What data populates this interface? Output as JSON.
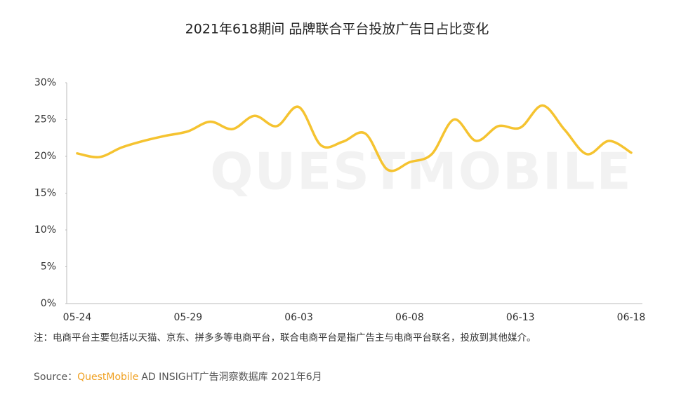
{
  "chart_data": {
    "type": "line",
    "title": "2021年618期间 品牌联合平台投放广告日占比变化",
    "watermark": "QUESTMOBILE",
    "categories": [
      "05-24",
      null,
      null,
      null,
      null,
      "05-29",
      null,
      null,
      null,
      null,
      "06-03",
      null,
      null,
      null,
      null,
      "06-08",
      null,
      null,
      null,
      null,
      "06-13",
      null,
      null,
      null,
      null,
      "06-18"
    ],
    "series": [
      {
        "name": "品牌联合平台投放广告日占比",
        "color": "#f5c330",
        "values": [
          20.4,
          19.9,
          21.2,
          22.1,
          22.8,
          23.4,
          24.7,
          23.7,
          25.5,
          24.1,
          26.7,
          21.5,
          22.0,
          23.1,
          18.2,
          19.2,
          20.3,
          25.0,
          22.1,
          24.1,
          23.9,
          26.9,
          23.6,
          20.3,
          22.1,
          20.5
        ]
      }
    ],
    "ylim": [
      0,
      30
    ],
    "yticks": [
      {
        "value": 0,
        "label": "0%"
      },
      {
        "value": 5,
        "label": "5%"
      },
      {
        "value": 10,
        "label": "10%"
      },
      {
        "value": 15,
        "label": "15%"
      },
      {
        "value": 20,
        "label": "20%"
      },
      {
        "value": 25,
        "label": "25%"
      },
      {
        "value": 30,
        "label": "30%"
      }
    ],
    "grid": false,
    "note": "注：电商平台主要包括以天猫、京东、拼多多等电商平台，联合电商平台是指广告主与电商平台联名，投放到其他媒介。",
    "source": {
      "label": "Source：",
      "brand": "QuestMobile",
      "text": "AD INSIGHT广告洞察数据库 2021年6月"
    }
  }
}
